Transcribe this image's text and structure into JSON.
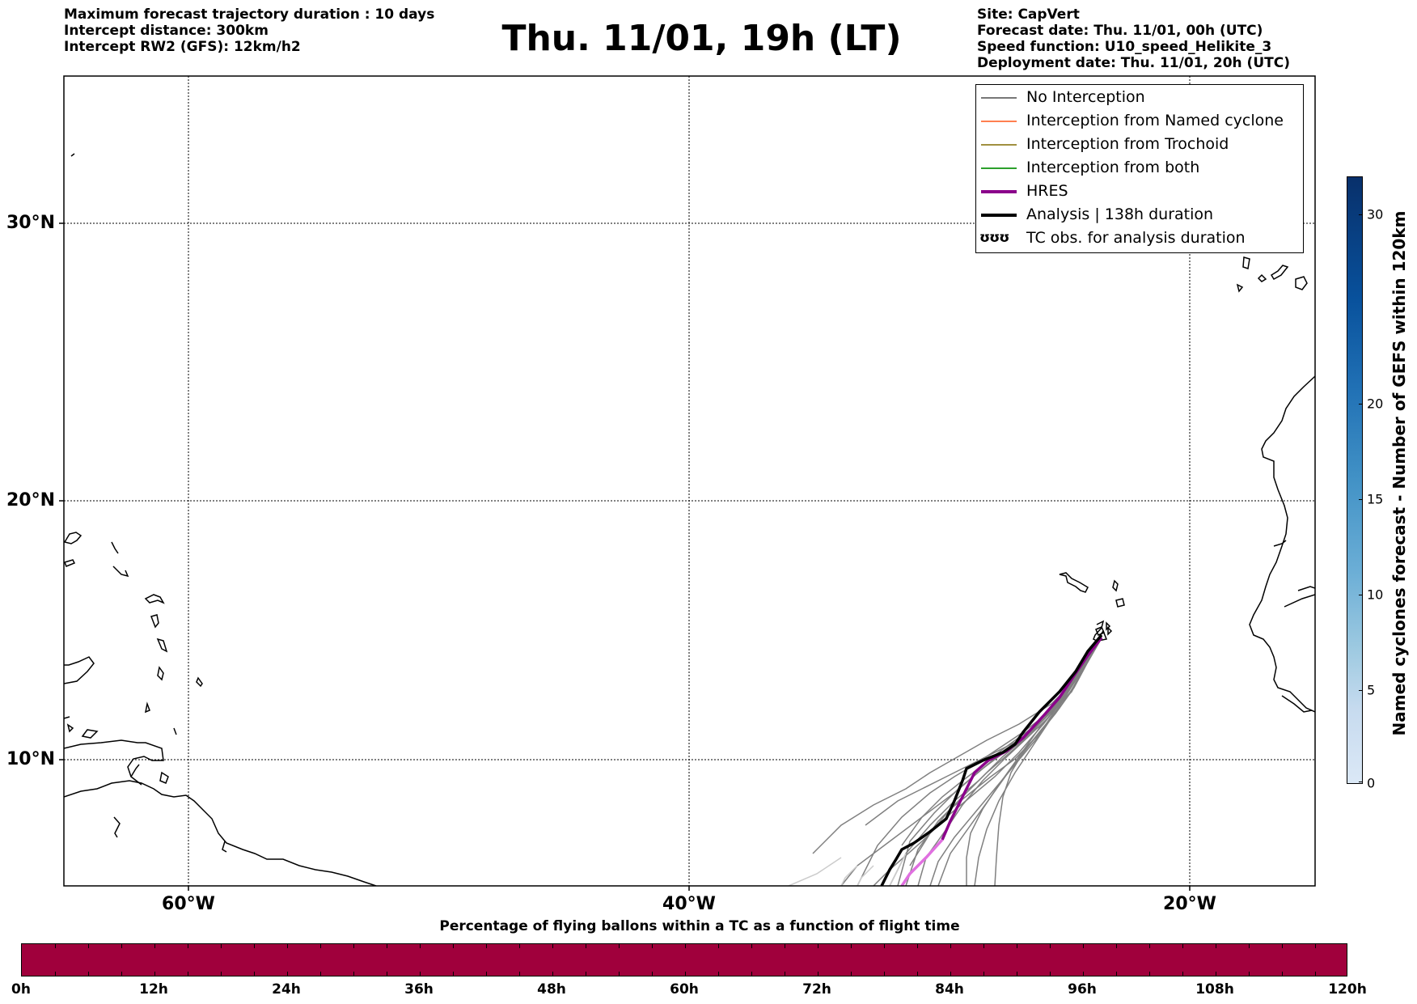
{
  "header": {
    "left": [
      "Maximum forecast trajectory duration : 10 days",
      "Intercept distance: 300km",
      "Intercept RW2 (GFS):  12km/h2"
    ],
    "title": "Thu. 11/01, 19h (LT)",
    "right": [
      "Site: CapVert",
      "Forecast date: Thu. 11/01, 00h (UTC)",
      "Speed function: U10_speed_Helikite_3",
      "Deployment date: Thu. 11/01, 20h (UTC)"
    ]
  },
  "map": {
    "lat_labels": [
      "30°N",
      "20°N",
      "10°N"
    ],
    "lon_labels": [
      "60°W",
      "40°W",
      "20°W"
    ]
  },
  "legend": {
    "items": [
      {
        "label": "No Interception",
        "color": "#777777"
      },
      {
        "label": "Interception from Named cyclone",
        "color": "#ff7f50"
      },
      {
        "label": "Interception from Trochoid",
        "color": "#a09040"
      },
      {
        "label": "Interception from both",
        "color": "#2ca02c"
      },
      {
        "label": "HRES",
        "color": "#8b008b"
      },
      {
        "label": "Analysis | 138h duration",
        "color": "#000000"
      },
      {
        "label": "TC obs. for analysis duration",
        "symbol": "ʊʊʊ"
      }
    ]
  },
  "colorbar": {
    "label": "Named cyclones forecast - Number of GEFS within 120km",
    "ticks": [
      "0",
      "5",
      "10",
      "15",
      "20",
      "30"
    ]
  },
  "timebar": {
    "title": "Percentage of flying ballons within a TC as a function of flight time",
    "color": "#a0003c",
    "ticks": [
      "0h",
      "12h",
      "24h",
      "36h",
      "48h",
      "60h",
      "72h",
      "84h",
      "96h",
      "108h",
      "120h"
    ]
  }
}
